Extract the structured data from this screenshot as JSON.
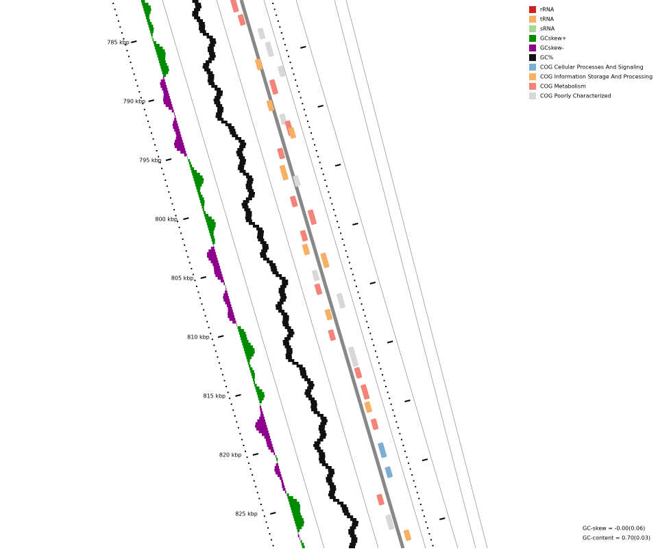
{
  "legend": [
    {
      "label": "rRNA",
      "color": "#d0201e"
    },
    {
      "label": "tRNA",
      "color": "#f7b064"
    },
    {
      "label": "sRNA",
      "color": "#a6d896"
    },
    {
      "label": "GCskew+",
      "color": "#008c00"
    },
    {
      "label": "GCskew-",
      "color": "#8c008c"
    },
    {
      "label": "GC%",
      "color": "#111111"
    },
    {
      "label": "COG Cellular Processes And Signaling",
      "color": "#7eaed2"
    },
    {
      "label": "COG Information Storage And Processing",
      "color": "#f7b064"
    },
    {
      "label": "COG Metabolism",
      "color": "#f4847a"
    },
    {
      "label": "COG Poorly Characterized",
      "color": "#d8d8d8"
    }
  ],
  "ticks": [
    "785 kbp",
    "790 kbp",
    "795 kbp",
    "800 kbp",
    "805 kbp",
    "810 kbp",
    "815 kbp",
    "820 kbp",
    "825 kbp"
  ],
  "stats": [
    "GC-skew = -0.00(0.06)",
    "GC-content = 0.70(0.03)"
  ]
}
